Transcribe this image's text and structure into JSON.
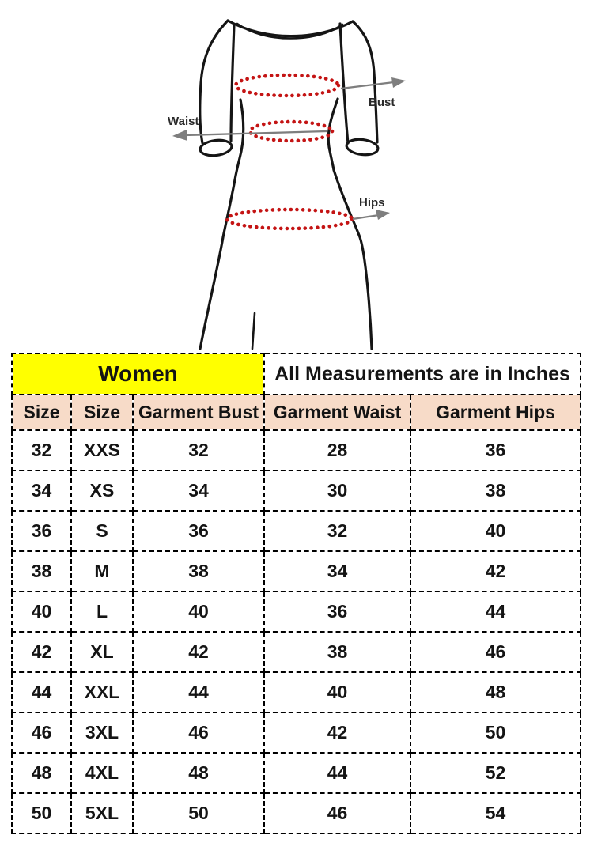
{
  "diagram": {
    "bust_label": "Bust",
    "waist_label": "Waist",
    "hips_label": "Hips"
  },
  "table": {
    "title_left": "Women",
    "title_right": "All Measurements are in Inches",
    "columns": [
      "Size",
      "Size",
      "Garment Bust",
      "Garment Waist",
      "Garment Hips"
    ],
    "rows": [
      [
        "32",
        "XXS",
        "32",
        "28",
        "36"
      ],
      [
        "34",
        "XS",
        "34",
        "30",
        "38"
      ],
      [
        "36",
        "S",
        "36",
        "32",
        "40"
      ],
      [
        "38",
        "M",
        "38",
        "34",
        "42"
      ],
      [
        "40",
        "L",
        "40",
        "36",
        "44"
      ],
      [
        "42",
        "XL",
        "42",
        "38",
        "46"
      ],
      [
        "44",
        "XXL",
        "44",
        "40",
        "48"
      ],
      [
        "46",
        "3XL",
        "46",
        "42",
        "50"
      ],
      [
        "48",
        "4XL",
        "48",
        "44",
        "52"
      ],
      [
        "50",
        "5XL",
        "50",
        "46",
        "54"
      ]
    ]
  },
  "colors": {
    "women-header-bg": "#ffff00",
    "column-header-bg": "#f7dbc8",
    "table-border": "#000000",
    "table-text": "#141414",
    "measure-dot": "#c41414",
    "arrow": "#7e7e7e",
    "dress-outline": "#151515",
    "diagram-label": "#2a2a2a",
    "page-bg": "#ffffff"
  }
}
